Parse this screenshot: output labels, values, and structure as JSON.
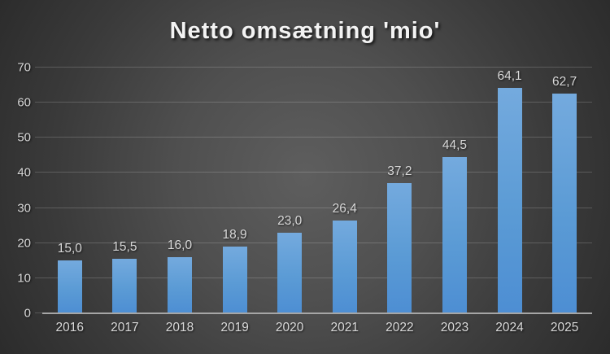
{
  "chart_data": {
    "type": "bar",
    "title": "Netto omsætning 'mio'",
    "categories": [
      "2016",
      "2017",
      "2018",
      "2019",
      "2020",
      "2021",
      "2022",
      "2023",
      "2024",
      "2025"
    ],
    "values": [
      15.0,
      15.5,
      16.0,
      18.9,
      23.0,
      26.4,
      37.2,
      44.5,
      64.1,
      62.7
    ],
    "value_labels": [
      "15,0",
      "15,5",
      "16,0",
      "18,9",
      "23,0",
      "26,4",
      "37,2",
      "44,5",
      "64,1",
      "62,7"
    ],
    "xlabel": "",
    "ylabel": "",
    "ylim": [
      0,
      70
    ],
    "yticks": [
      0,
      10,
      20,
      30,
      40,
      50,
      60,
      70
    ],
    "grid": true,
    "legend": "none",
    "decimal_separator": ","
  },
  "colors": {
    "bar_top": "#74aade",
    "bar_mid": "#5b9bd5",
    "bar_bottom": "#4d8ed3",
    "title_color": "#f3f3f3",
    "label_color": "#d9d9d9",
    "axis_color": "#a6a6a6",
    "grid_color": "rgba(255,255,255,0.18)",
    "background_center": "#5e5e5e",
    "background_edge": "#252525"
  }
}
